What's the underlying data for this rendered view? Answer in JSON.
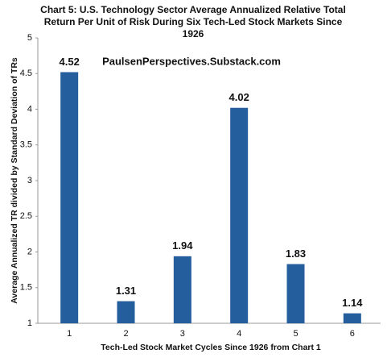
{
  "chart_data": {
    "type": "bar",
    "title": "Chart 5: U.S. Technology Sector Average Annualized Relative Total Return Per Unit of Risk During Six Tech-Led Stock Markets Since 1926",
    "annotation": "PaulsenPerspectives.Substack.com",
    "x_label": "Tech-Led Stock Market Cycles Since 1926 from Chart 1",
    "y_label": "Average Annualized TR divided by Standard Deviation of TRs",
    "categories": [
      "1",
      "2",
      "3",
      "4",
      "5",
      "6"
    ],
    "values": [
      4.52,
      1.31,
      1.94,
      4.02,
      1.83,
      1.14
    ],
    "color": "#255e9c",
    "ylim": [
      1,
      5
    ],
    "yticks": [
      1,
      1.5,
      2,
      2.5,
      3,
      3.5,
      4,
      4.5,
      5
    ],
    "grid": false
  }
}
